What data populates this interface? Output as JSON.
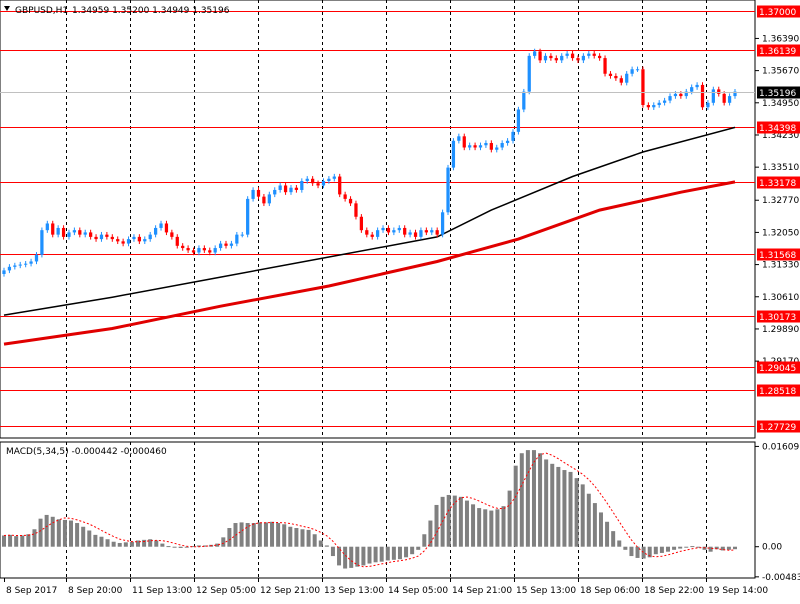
{
  "chart_header": {
    "symbol_timeframe": "GBPUSD,H1",
    "ohlc": "1.34959 1.35200 1.34949 1.35196"
  },
  "macd_header": "MACD(5,34,5) -0.000442 -0.000460",
  "colors": {
    "background": "#ffffff",
    "grid": "#000000",
    "bull_candle": "#1e90ff",
    "bear_candle": "#ff0000",
    "level_line": "#ff0000",
    "ma_fast": "#000000",
    "ma_slow": "#e00000",
    "histogram": "#808080",
    "signal": "#ff0000",
    "current_price_box": "#000000",
    "level_box": "#ff0000"
  },
  "chart_data": [
    {
      "type": "candlestick",
      "title": "GBPUSD,H1",
      "ylim": [
        1.2745,
        1.3725
      ],
      "y_ticks": [
        1.3639,
        1.3567,
        1.3495,
        1.3423,
        1.3351,
        1.3277,
        1.3205,
        1.3133,
        1.3061,
        1.2989,
        1.2917
      ],
      "x_ticks": [
        "8 Sep 2017",
        "8 Sep 20:00",
        "11 Sep 13:00",
        "12 Sep 05:00",
        "12 Sep 21:00",
        "13 Sep 13:00",
        "14 Sep 05:00",
        "14 Sep 21:00",
        "15 Sep 13:00",
        "18 Sep 06:00",
        "18 Sep 22:00",
        "19 Sep 14:00"
      ],
      "current_price": 1.35196,
      "horizontal_levels": [
        1.37,
        1.36139,
        1.34398,
        1.33178,
        1.31568,
        1.30173,
        1.29045,
        1.28518,
        1.27729
      ],
      "close_series": [
        1.312,
        1.3128,
        1.3131,
        1.3133,
        1.3135,
        1.314,
        1.3155,
        1.321,
        1.3225,
        1.32,
        1.3215,
        1.3195,
        1.3205,
        1.321,
        1.32,
        1.3205,
        1.3195,
        1.319,
        1.32,
        1.3195,
        1.319,
        1.3185,
        1.318,
        1.319,
        1.3195,
        1.3185,
        1.319,
        1.32,
        1.3215,
        1.3225,
        1.3205,
        1.3195,
        1.3175,
        1.317,
        1.3165,
        1.316,
        1.317,
        1.3165,
        1.316,
        1.317,
        1.318,
        1.3175,
        1.318,
        1.32,
        1.32,
        1.328,
        1.33,
        1.3285,
        1.327,
        1.329,
        1.33,
        1.331,
        1.3295,
        1.3305,
        1.33,
        1.332,
        1.3325,
        1.3315,
        1.331,
        1.332,
        1.3325,
        1.333,
        1.329,
        1.328,
        1.327,
        1.324,
        1.321,
        1.32,
        1.3195,
        1.321,
        1.3215,
        1.3205,
        1.321,
        1.3215,
        1.32,
        1.3205,
        1.3195,
        1.321,
        1.3205,
        1.321,
        1.32,
        1.325,
        1.335,
        1.341,
        1.342,
        1.3395,
        1.34,
        1.3395,
        1.34,
        1.3405,
        1.339,
        1.3395,
        1.3405,
        1.341,
        1.343,
        1.348,
        1.352,
        1.36,
        1.361,
        1.359,
        1.36,
        1.3595,
        1.359,
        1.36,
        1.3605,
        1.3595,
        1.359,
        1.36,
        1.3605,
        1.36,
        1.3595,
        1.356,
        1.3555,
        1.355,
        1.354,
        1.356,
        1.357,
        1.357,
        1.349,
        1.3485,
        1.349,
        1.3495,
        1.35,
        1.351,
        1.3515,
        1.351,
        1.352,
        1.353,
        1.3535,
        1.3485,
        1.3495,
        1.3525,
        1.3515,
        1.3495,
        1.351,
        1.352
      ],
      "series": [
        {
          "name": "",
          "type": "line",
          "x": [
            0,
            20,
            40,
            60,
            80,
            90,
            105,
            118,
            135
          ],
          "values": [
            1.302,
            1.306,
            1.3105,
            1.315,
            1.3195,
            1.3255,
            1.333,
            1.3385,
            1.344
          ]
        },
        {
          "name": "",
          "type": "line",
          "x": [
            0,
            20,
            40,
            60,
            80,
            95,
            110,
            125,
            135
          ],
          "values": [
            1.2955,
            1.299,
            1.304,
            1.3085,
            1.314,
            1.319,
            1.3255,
            1.3295,
            1.3318
          ]
        }
      ]
    },
    {
      "type": "histogram",
      "title": "MACD(5,34,5) -0.000442 -0.000460",
      "ylim": [
        -0.00502,
        0.0168
      ],
      "y_ticks": [
        0.01609,
        0.0,
        -0.004835
      ],
      "macd_values": [
        0.0018,
        0.0019,
        0.0017,
        0.0018,
        0.002,
        0.0028,
        0.0045,
        0.0051,
        0.0048,
        0.0044,
        0.0043,
        0.0042,
        0.0038,
        0.0032,
        0.0026,
        0.0019,
        0.0016,
        0.0012,
        0.0008,
        0.0006,
        0.0007,
        0.0008,
        0.001,
        0.0011,
        0.0012,
        0.001,
        0.0005,
        0.0001,
        -0.0001,
        -0.0002,
        0.0,
        0.0001,
        0.0002,
        0.0002,
        0.0003,
        0.0005,
        0.0015,
        0.003,
        0.0038,
        0.0039,
        0.0038,
        0.0038,
        0.0039,
        0.0039,
        0.004,
        0.0038,
        0.0036,
        0.0032,
        0.003,
        0.0028,
        0.0027,
        0.002,
        0.001,
        0.0002,
        -0.0015,
        -0.003,
        -0.0035,
        -0.0034,
        -0.0032,
        -0.003,
        -0.0027,
        -0.0025,
        -0.0024,
        -0.0022,
        -0.0021,
        -0.002,
        -0.0017,
        -0.0012,
        -0.0005,
        0.002,
        0.0042,
        0.0067,
        0.008,
        0.0083,
        0.0082,
        0.008,
        0.0074,
        0.0068,
        0.0062,
        0.006,
        0.0058,
        0.006,
        0.0065,
        0.009,
        0.013,
        0.015,
        0.0155,
        0.0155,
        0.015,
        0.014,
        0.0133,
        0.0128,
        0.0123,
        0.012,
        0.011,
        0.01,
        0.0085,
        0.007,
        0.0055,
        0.004,
        0.0025,
        0.001,
        -0.0005,
        -0.0015,
        -0.0018,
        -0.0019,
        -0.0017,
        -0.0012,
        -0.001,
        -0.0008,
        -0.0005,
        -0.0003,
        -0.0001,
        0.0001,
        0.0,
        -0.0005,
        -0.0008,
        -0.0004,
        -0.0006,
        -0.0005,
        -0.0004
      ]
    }
  ]
}
